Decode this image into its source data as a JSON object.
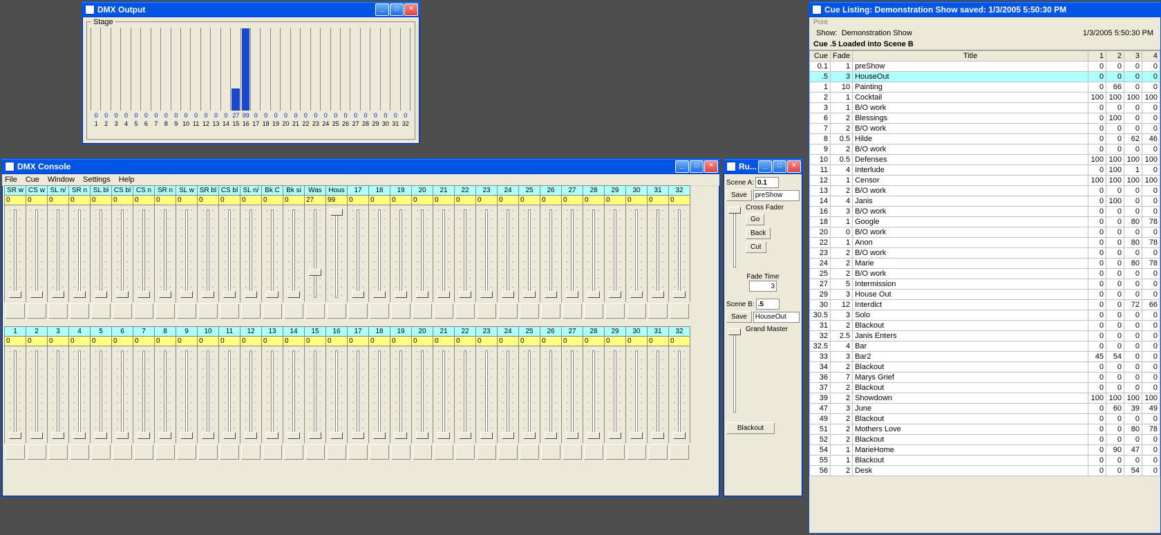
{
  "dmx_output": {
    "title": "DMX Output",
    "group_label": "Stage",
    "channels": 32,
    "values": [
      0,
      0,
      0,
      0,
      0,
      0,
      0,
      0,
      0,
      0,
      0,
      0,
      0,
      0,
      27,
      99,
      0,
      0,
      0,
      0,
      0,
      0,
      0,
      0,
      0,
      0,
      0,
      0,
      0,
      0,
      0,
      0
    ]
  },
  "dmx_console": {
    "title": "DMX Console",
    "menu": [
      "File",
      "Cue",
      "Window",
      "Settings",
      "Help"
    ],
    "bank_a": {
      "labels": [
        "SR w",
        "CS w",
        "SL n/",
        "SR n",
        "SL bl",
        "CS bl",
        "CS n",
        "SR n",
        "SL w",
        "SR bl",
        "CS bl",
        "SL n/",
        "Bk C",
        "Bk si",
        "Was",
        "Hous",
        "17",
        "18",
        "19",
        "20",
        "21",
        "22",
        "23",
        "24",
        "25",
        "26",
        "27",
        "28",
        "29",
        "30",
        "31",
        "32"
      ],
      "values": [
        0,
        0,
        0,
        0,
        0,
        0,
        0,
        0,
        0,
        0,
        0,
        0,
        0,
        0,
        27,
        99,
        0,
        0,
        0,
        0,
        0,
        0,
        0,
        0,
        0,
        0,
        0,
        0,
        0,
        0,
        0,
        0
      ]
    },
    "bank_b": {
      "labels": [
        "1",
        "2",
        "3",
        "4",
        "5",
        "6",
        "7",
        "8",
        "9",
        "10",
        "11",
        "12",
        "13",
        "14",
        "15",
        "16",
        "17",
        "18",
        "19",
        "20",
        "21",
        "22",
        "23",
        "24",
        "25",
        "26",
        "27",
        "28",
        "29",
        "30",
        "31",
        "32"
      ],
      "values": [
        0,
        0,
        0,
        0,
        0,
        0,
        0,
        0,
        0,
        0,
        0,
        0,
        0,
        0,
        0,
        0,
        0,
        0,
        0,
        0,
        0,
        0,
        0,
        0,
        0,
        0,
        0,
        0,
        0,
        0,
        0,
        0
      ]
    }
  },
  "run_panel": {
    "title": "Ru...",
    "scene_a_label": "Scene A:",
    "scene_a_value": "0.1",
    "scene_a_name": "preShow",
    "scene_b_label": "Scene B:",
    "scene_b_value": ".5",
    "scene_b_name": "HouseOut",
    "save_label": "Save",
    "crossfader_label": "Cross Fader",
    "go_label": "Go",
    "back_label": "Back",
    "cut_label": "Cut",
    "fadetime_label": "Fade Time",
    "fadetime_value": "3",
    "grandmaster_label": "Grand Master",
    "blackout_label": "Blackout"
  },
  "cue_listing": {
    "title": "Cue Listing: Demonstration Show saved: 1/3/2005 5:50:30 PM",
    "print_label": "Print",
    "show_label": "Show:",
    "show_name": "Demonstration Show",
    "timestamp": "1/3/2005 5:50:30 PM",
    "status": "Cue .5 Loaded into Scene B",
    "headers": [
      "Cue",
      "Fade",
      "Title",
      "1",
      "2",
      "3",
      "4"
    ],
    "highlight_cue": "0.5",
    "rows": [
      {
        "cue": "0.1",
        "fade": "1",
        "title": "preShow",
        "v": [
          0,
          0,
          0,
          0
        ]
      },
      {
        "cue": ".5",
        "fade": "3",
        "title": "HouseOut",
        "v": [
          0,
          0,
          0,
          0
        ]
      },
      {
        "cue": "1",
        "fade": "10",
        "title": "Painting",
        "v": [
          0,
          66,
          0,
          0
        ]
      },
      {
        "cue": "2",
        "fade": "1",
        "title": "Cocktail",
        "v": [
          100,
          100,
          100,
          100
        ]
      },
      {
        "cue": "3",
        "fade": "1",
        "title": "B/O work",
        "v": [
          0,
          0,
          0,
          0
        ]
      },
      {
        "cue": "6",
        "fade": "2",
        "title": "Blessings",
        "v": [
          0,
          100,
          0,
          0
        ]
      },
      {
        "cue": "7",
        "fade": "2",
        "title": "B/O work",
        "v": [
          0,
          0,
          0,
          0
        ]
      },
      {
        "cue": "8",
        "fade": "0.5",
        "title": "Hilde",
        "v": [
          0,
          0,
          62,
          46
        ]
      },
      {
        "cue": "9",
        "fade": "2",
        "title": "B/O work",
        "v": [
          0,
          0,
          0,
          0
        ]
      },
      {
        "cue": "10",
        "fade": "0.5",
        "title": "Defenses",
        "v": [
          100,
          100,
          100,
          100
        ]
      },
      {
        "cue": "11",
        "fade": "4",
        "title": "Interlude",
        "v": [
          0,
          100,
          1,
          0
        ]
      },
      {
        "cue": "12",
        "fade": "1",
        "title": "Censor",
        "v": [
          100,
          100,
          100,
          100
        ]
      },
      {
        "cue": "13",
        "fade": "2",
        "title": "B/O work",
        "v": [
          0,
          0,
          0,
          0
        ]
      },
      {
        "cue": "14",
        "fade": "4",
        "title": "Janis",
        "v": [
          0,
          100,
          0,
          0
        ]
      },
      {
        "cue": "16",
        "fade": "3",
        "title": "B/O work",
        "v": [
          0,
          0,
          0,
          0
        ]
      },
      {
        "cue": "18",
        "fade": "1",
        "title": "Google",
        "v": [
          0,
          0,
          80,
          78
        ]
      },
      {
        "cue": "20",
        "fade": "0",
        "title": "B/O work",
        "v": [
          0,
          0,
          0,
          0
        ]
      },
      {
        "cue": "22",
        "fade": "1",
        "title": "Anon",
        "v": [
          0,
          0,
          80,
          78
        ]
      },
      {
        "cue": "23",
        "fade": "2",
        "title": "B/O work",
        "v": [
          0,
          0,
          0,
          0
        ]
      },
      {
        "cue": "24",
        "fade": "2",
        "title": "Marie",
        "v": [
          0,
          0,
          80,
          78
        ]
      },
      {
        "cue": "25",
        "fade": "2",
        "title": "B/O work",
        "v": [
          0,
          0,
          0,
          0
        ]
      },
      {
        "cue": "27",
        "fade": "5",
        "title": "Intermission",
        "v": [
          0,
          0,
          0,
          0
        ]
      },
      {
        "cue": "29",
        "fade": "3",
        "title": "House Out",
        "v": [
          0,
          0,
          0,
          0
        ]
      },
      {
        "cue": "30",
        "fade": "12",
        "title": "Interdict",
        "v": [
          0,
          0,
          72,
          66
        ]
      },
      {
        "cue": "30.5",
        "fade": "3",
        "title": "Solo",
        "v": [
          0,
          0,
          0,
          0
        ]
      },
      {
        "cue": "31",
        "fade": "2",
        "title": "Blackout",
        "v": [
          0,
          0,
          0,
          0
        ]
      },
      {
        "cue": "32",
        "fade": "2.5",
        "title": "Janis Enters",
        "v": [
          0,
          0,
          0,
          0
        ]
      },
      {
        "cue": "32.5",
        "fade": "4",
        "title": "Bar",
        "v": [
          0,
          0,
          0,
          0
        ]
      },
      {
        "cue": "33",
        "fade": "3",
        "title": "Bar2",
        "v": [
          45,
          54,
          0,
          0
        ]
      },
      {
        "cue": "34",
        "fade": "2",
        "title": "Blackout",
        "v": [
          0,
          0,
          0,
          0
        ]
      },
      {
        "cue": "36",
        "fade": "7",
        "title": "Marys Grief",
        "v": [
          0,
          0,
          0,
          0
        ]
      },
      {
        "cue": "37",
        "fade": "2",
        "title": "Blackout",
        "v": [
          0,
          0,
          0,
          0
        ]
      },
      {
        "cue": "39",
        "fade": "2",
        "title": "Showdown",
        "v": [
          100,
          100,
          100,
          100
        ]
      },
      {
        "cue": "47",
        "fade": "3",
        "title": "June",
        "v": [
          0,
          60,
          39,
          49
        ]
      },
      {
        "cue": "49",
        "fade": "2",
        "title": "Blackout",
        "v": [
          0,
          0,
          0,
          0
        ]
      },
      {
        "cue": "51",
        "fade": "2",
        "title": "Mothers Love",
        "v": [
          0,
          0,
          80,
          78
        ]
      },
      {
        "cue": "52",
        "fade": "2",
        "title": "Blackout",
        "v": [
          0,
          0,
          0,
          0
        ]
      },
      {
        "cue": "54",
        "fade": "1",
        "title": "MarieHome",
        "v": [
          0,
          90,
          47,
          0
        ]
      },
      {
        "cue": "55",
        "fade": "1",
        "title": "Blackout",
        "v": [
          0,
          0,
          0,
          0
        ]
      },
      {
        "cue": "56",
        "fade": "2",
        "title": "Desk",
        "v": [
          0,
          0,
          54,
          0
        ]
      }
    ]
  }
}
